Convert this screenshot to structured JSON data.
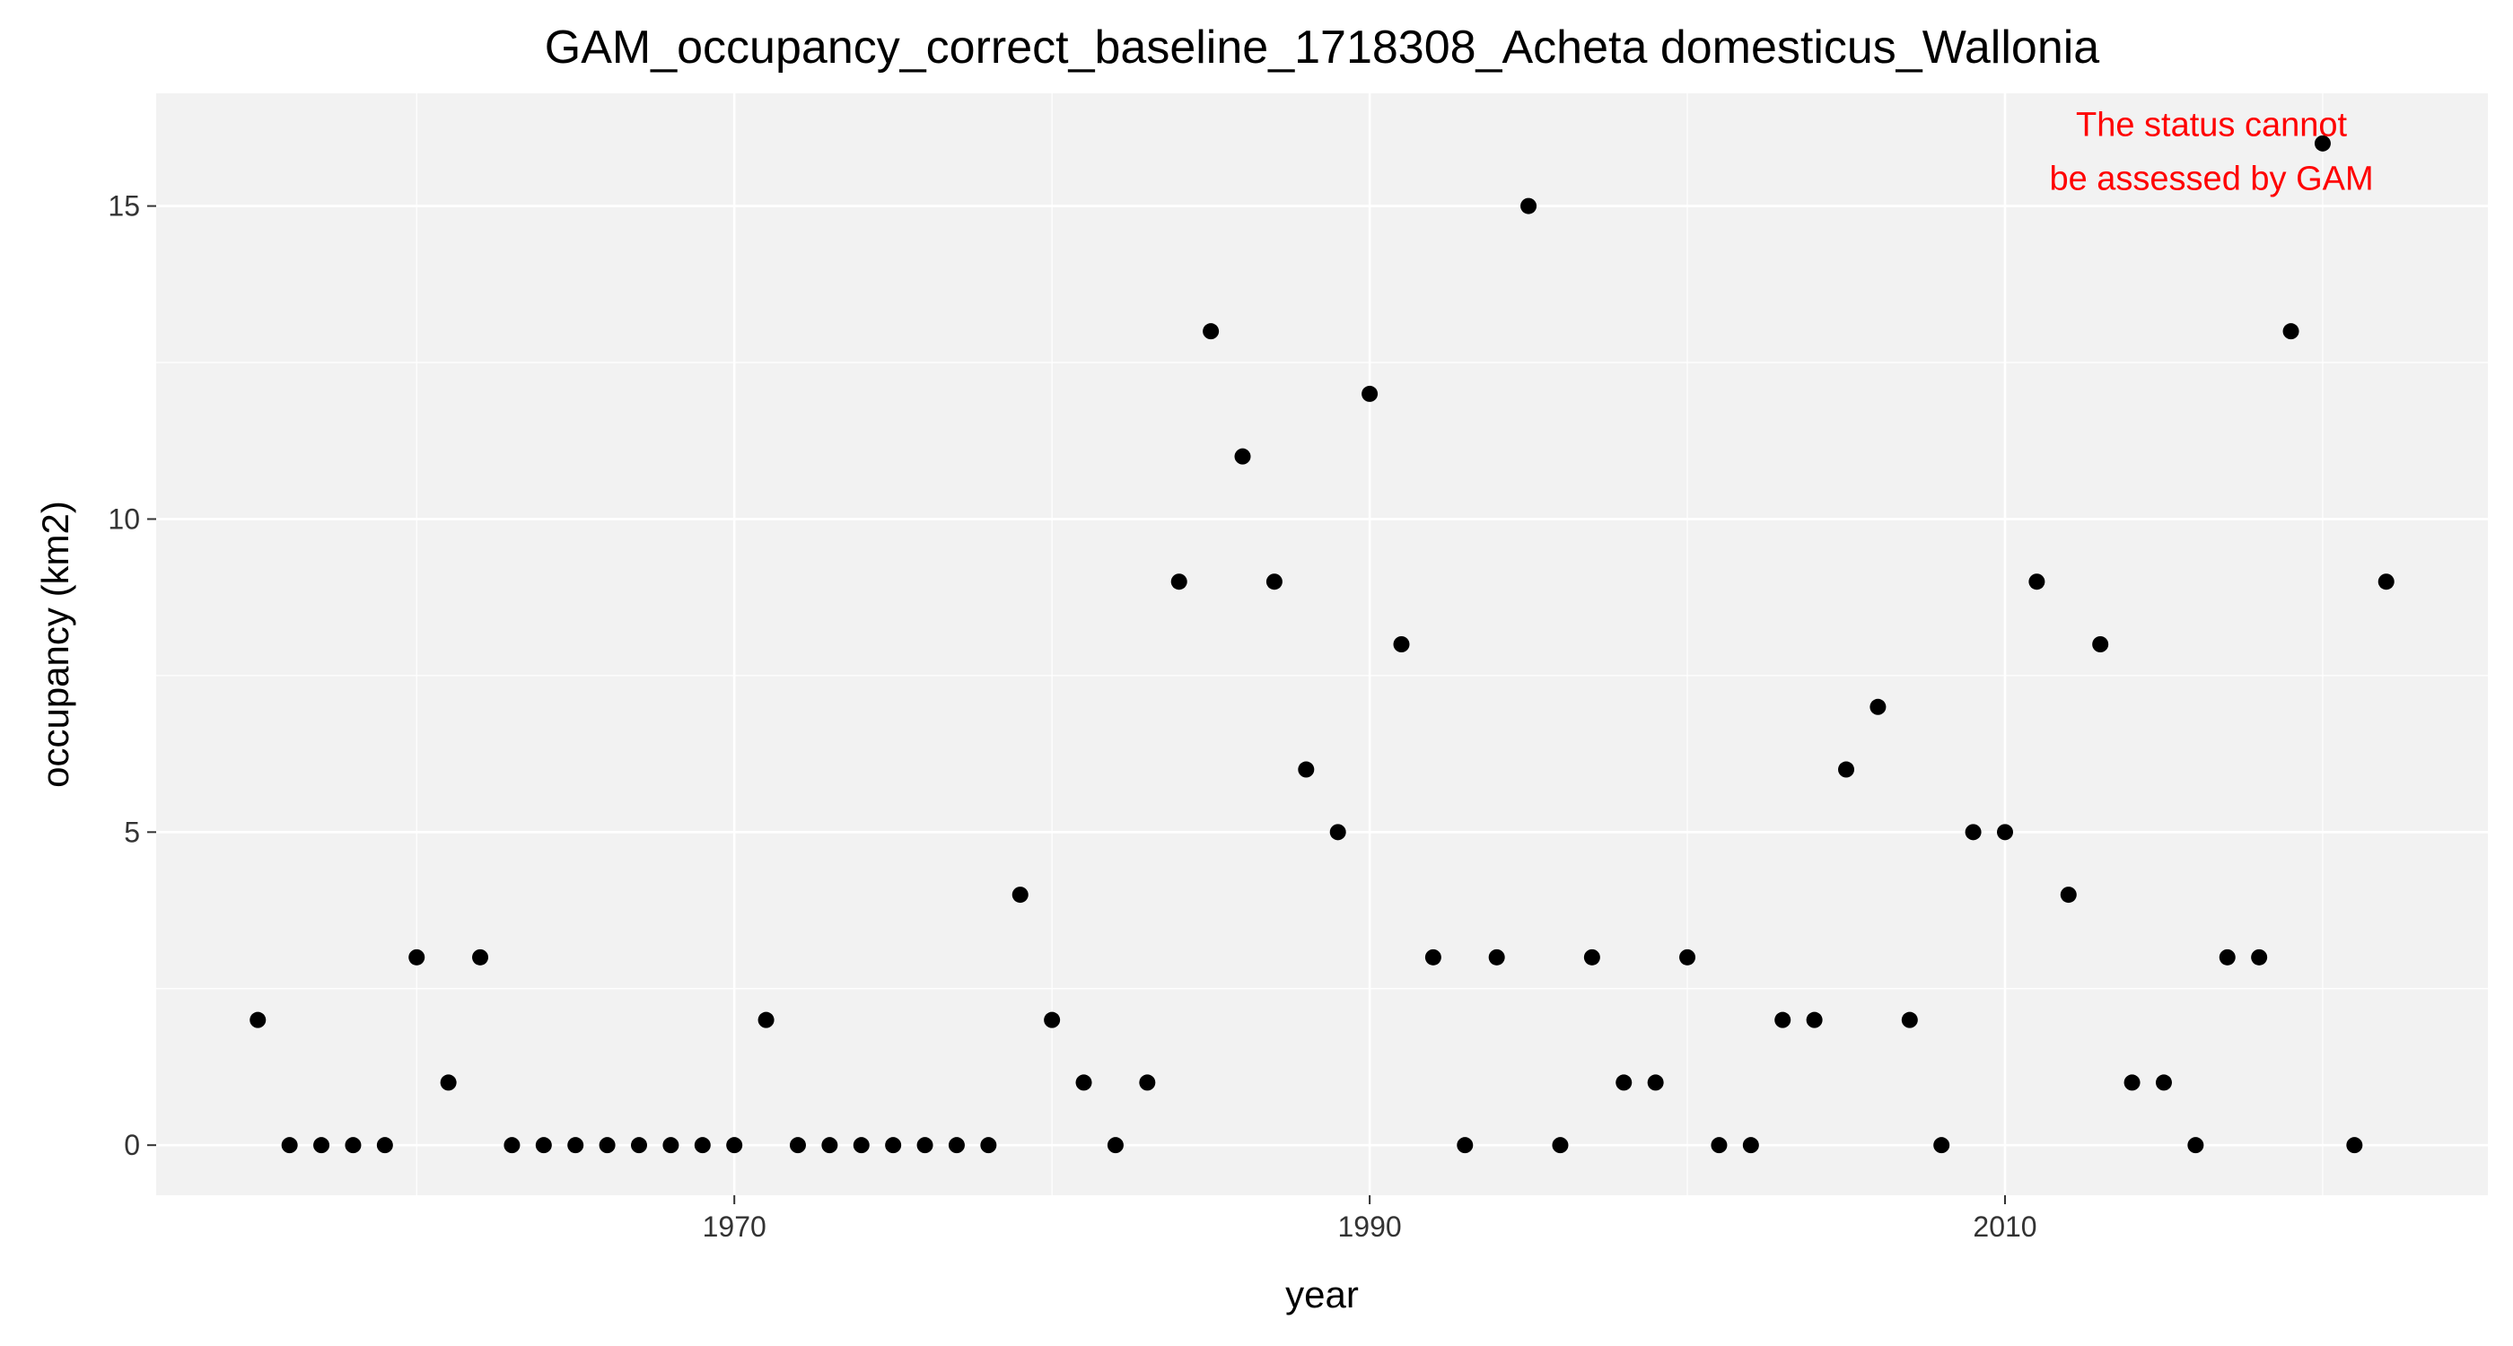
{
  "chart_data": {
    "type": "scatter",
    "title": "GAM_occupancy_correct_baseline_1718308_Acheta domesticus_Wallonia",
    "xlabel": "year",
    "ylabel": "occupancy (km2)",
    "xlim": [
      1951.8,
      2025.2
    ],
    "ylim": [
      -0.8,
      16.8
    ],
    "x_ticks": [
      1970,
      1990,
      2010
    ],
    "y_ticks": [
      0,
      5,
      10,
      15
    ],
    "grid": true,
    "colors": {
      "panel_background": "#f2f2f2",
      "grid": "#ffffff",
      "point": "#000000",
      "annotation": "#ff0000",
      "tick": "#333333"
    },
    "annotation": {
      "lines": [
        "The status cannot",
        "be assessed by GAM"
      ],
      "x": 2016.5,
      "y": 15.4,
      "color": "#ff0000"
    },
    "x": [
      1955,
      1956,
      1957,
      1958,
      1959,
      1960,
      1961,
      1962,
      1963,
      1964,
      1965,
      1966,
      1967,
      1968,
      1969,
      1970,
      1971,
      1972,
      1973,
      1974,
      1975,
      1976,
      1977,
      1978,
      1979,
      1980,
      1981,
      1982,
      1983,
      1984,
      1985,
      1986,
      1987,
      1988,
      1989,
      1990,
      1991,
      1992,
      1993,
      1994,
      1995,
      1996,
      1997,
      1998,
      1999,
      2000,
      2001,
      2002,
      2003,
      2004,
      2005,
      2006,
      2007,
      2008,
      2009,
      2010,
      2011,
      2012,
      2013,
      2014,
      2015,
      2016,
      2017,
      2018,
      2019,
      2020,
      2021,
      2022
    ],
    "y": [
      2,
      0,
      0,
      0,
      0,
      3,
      1,
      3,
      0,
      0,
      0,
      0,
      0,
      0,
      0,
      0,
      2,
      0,
      0,
      0,
      0,
      0,
      0,
      0,
      4,
      2,
      1,
      0,
      1,
      9,
      13,
      11,
      9,
      6,
      5,
      12,
      8,
      3,
      0,
      3,
      15,
      0,
      3,
      1,
      1,
      3,
      0,
      0,
      2,
      2,
      6,
      7,
      2,
      0,
      5,
      5,
      9,
      4,
      8,
      1,
      1,
      0,
      3,
      3,
      13,
      16,
      0,
      9
    ]
  }
}
